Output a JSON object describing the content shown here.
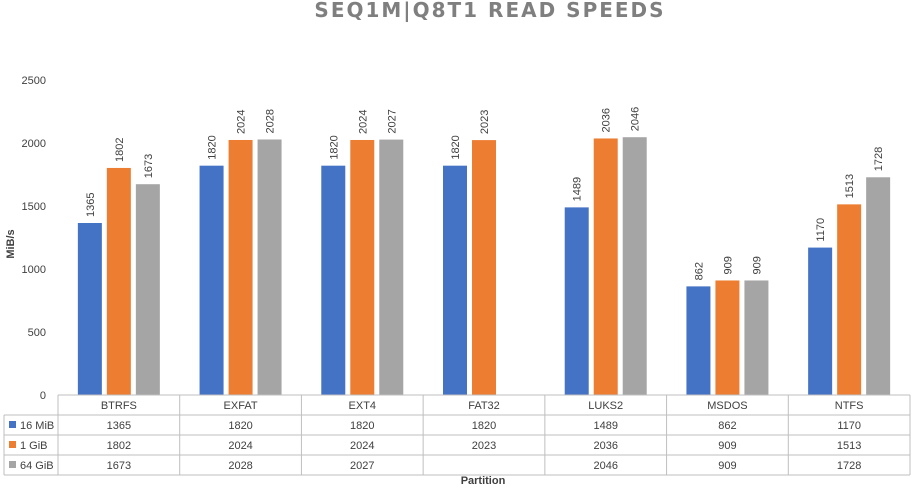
{
  "chart_data": {
    "type": "bar",
    "title": "SEQ1M|Q8T1 READ SPEEDS",
    "xlabel": "Partition",
    "ylabel": "MiB/s",
    "ylim": [
      0,
      2500
    ],
    "yticks": [
      0,
      500,
      1000,
      1500,
      2000,
      2500
    ],
    "grid": false,
    "legend": "data-table",
    "categories": [
      "BTRFS",
      "EXFAT",
      "EXT4",
      "FAT32",
      "LUKS2",
      "MSDOS",
      "NTFS"
    ],
    "series": [
      {
        "name": "16 MiB",
        "color": "#4472c4",
        "values": [
          1365,
          1820,
          1820,
          1820,
          1489,
          862,
          1170
        ]
      },
      {
        "name": "1 GiB",
        "color": "#ed7d31",
        "values": [
          1802,
          2024,
          2024,
          2023,
          2036,
          909,
          1513
        ]
      },
      {
        "name": "64 GiB",
        "color": "#a5a5a5",
        "values": [
          1673,
          2028,
          2027,
          null,
          2046,
          909,
          1728
        ]
      }
    ]
  },
  "colors": {
    "axis": "#bfbfbf",
    "text": "#404040",
    "title": "#7f7f7f"
  }
}
